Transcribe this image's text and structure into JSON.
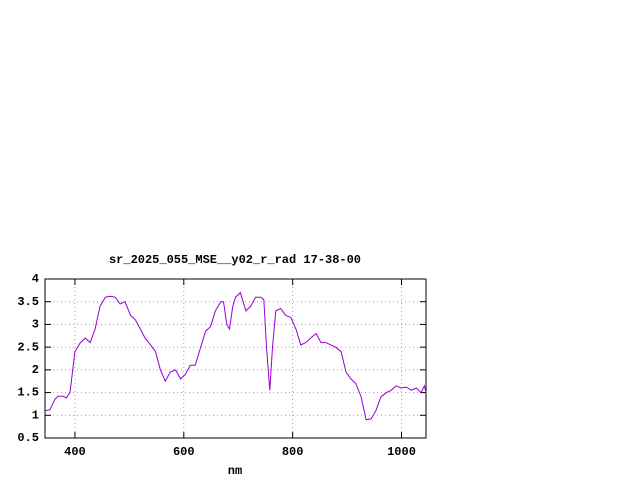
{
  "chart_data": {
    "type": "line",
    "title": "sr_2025_055_MSE__y02_r_rad 17-38-00",
    "x_label": "nm",
    "xlim": [
      345,
      1045
    ],
    "ylim": [
      0.5,
      4
    ],
    "xticks": [
      400,
      600,
      800,
      1000
    ],
    "yticks": [
      0.5,
      1,
      1.5,
      2,
      2.5,
      3,
      3.5,
      4
    ],
    "grid": true,
    "series": [
      {
        "color": "#9400d3",
        "x": [
          345,
          354,
          363,
          369,
          378,
          384,
          391,
          400,
          410,
          419,
          428,
          437,
          446,
          456,
          465,
          474,
          483,
          492,
          502,
          511,
          520,
          529,
          539,
          548,
          557,
          566,
          575,
          585,
          594,
          603,
          612,
          621,
          631,
          640,
          649,
          658,
          668,
          673,
          679,
          684,
          690,
          695,
          704,
          714,
          723,
          732,
          741,
          747,
          752,
          758,
          763,
          769,
          778,
          787,
          797,
          806,
          815,
          824,
          833,
          843,
          852,
          861,
          870,
          879,
          889,
          898,
          907,
          916,
          926,
          935,
          944,
          953,
          962,
          972,
          981,
          990,
          999,
          1009,
          1018,
          1027,
          1036,
          1042,
          1045
        ],
        "values": [
          1.1,
          1.12,
          1.35,
          1.42,
          1.42,
          1.38,
          1.5,
          2.4,
          2.6,
          2.7,
          2.6,
          2.9,
          3.4,
          3.6,
          3.62,
          3.6,
          3.45,
          3.5,
          3.2,
          3.1,
          2.9,
          2.7,
          2.55,
          2.4,
          2.0,
          1.75,
          1.95,
          2.0,
          1.8,
          1.9,
          2.1,
          2.1,
          2.5,
          2.85,
          2.95,
          3.3,
          3.5,
          3.5,
          3.0,
          2.9,
          3.4,
          3.6,
          3.7,
          3.3,
          3.4,
          3.6,
          3.6,
          3.55,
          2.5,
          1.55,
          2.5,
          3.3,
          3.35,
          3.2,
          3.15,
          2.9,
          2.55,
          2.6,
          2.7,
          2.8,
          2.6,
          2.6,
          2.55,
          2.5,
          2.4,
          1.95,
          1.8,
          1.7,
          1.4,
          0.9,
          0.92,
          1.1,
          1.4,
          1.5,
          1.55,
          1.65,
          1.6,
          1.62,
          1.55,
          1.6,
          1.5,
          1.65,
          1.5
        ]
      }
    ]
  }
}
